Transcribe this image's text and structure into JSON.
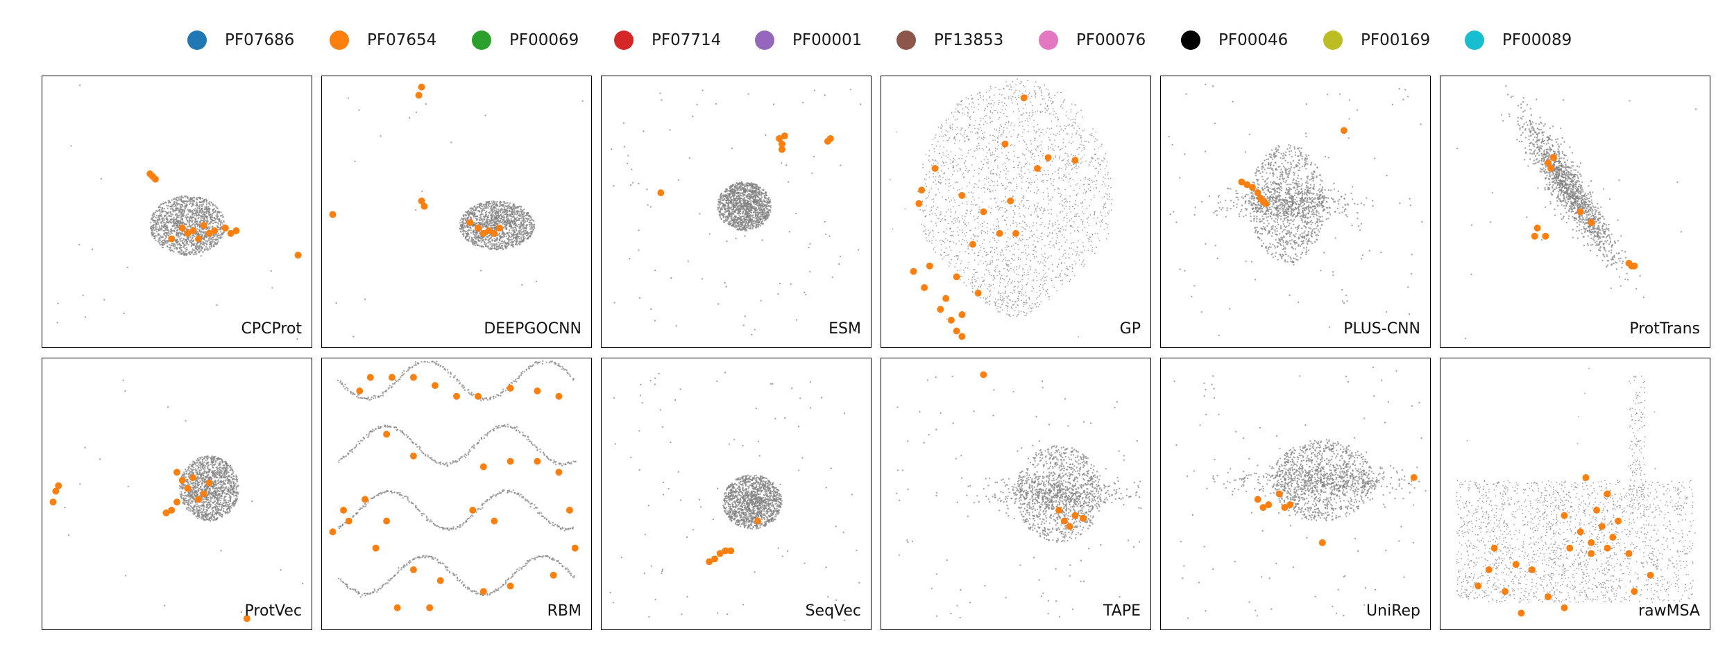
{
  "chart_data": {
    "type": "scatter",
    "legend": {
      "placement": "top-center",
      "entries": [
        {
          "name": "PF07686",
          "color": "#1f77b4"
        },
        {
          "name": "PF07654",
          "color": "#ff7f0e"
        },
        {
          "name": "PF00069",
          "color": "#2ca02c"
        },
        {
          "name": "PF07714",
          "color": "#d62728"
        },
        {
          "name": "PF00001",
          "color": "#9467bd"
        },
        {
          "name": "PF13853",
          "color": "#8c564b"
        },
        {
          "name": "PF00076",
          "color": "#e377c2"
        },
        {
          "name": "PF00046",
          "color": "#000000"
        },
        {
          "name": "PF00169",
          "color": "#bcbd22"
        },
        {
          "name": "PF00089",
          "color": "#17becf"
        }
      ]
    },
    "background_color": "#808080",
    "highlight_series": "PF07654",
    "grid": false,
    "axes_visible": false,
    "layout": "2 rows x 6 columns",
    "panels": [
      {
        "name": "CPCProt",
        "shape": "blob",
        "cloud_center": [
          0.54,
          0.55
        ],
        "cloud_radius": [
          0.14,
          0.11
        ],
        "highlight_points": [
          [
            0.4,
            0.36
          ],
          [
            0.41,
            0.37
          ],
          [
            0.42,
            0.38
          ],
          [
            0.54,
            0.58
          ],
          [
            0.56,
            0.57
          ],
          [
            0.58,
            0.6
          ],
          [
            0.6,
            0.55
          ],
          [
            0.62,
            0.58
          ],
          [
            0.64,
            0.57
          ],
          [
            0.68,
            0.56
          ],
          [
            0.7,
            0.58
          ],
          [
            0.72,
            0.57
          ],
          [
            0.52,
            0.56
          ],
          [
            0.48,
            0.6
          ],
          [
            0.95,
            0.66
          ]
        ]
      },
      {
        "name": "DEEPGOCNN",
        "shape": "blob",
        "cloud_center": [
          0.65,
          0.55
        ],
        "cloud_radius": [
          0.14,
          0.09
        ],
        "highlight_points": [
          [
            0.37,
            0.04
          ],
          [
            0.36,
            0.07
          ],
          [
            0.04,
            0.51
          ],
          [
            0.37,
            0.46
          ],
          [
            0.38,
            0.48
          ],
          [
            0.55,
            0.54
          ],
          [
            0.58,
            0.56
          ],
          [
            0.6,
            0.58
          ],
          [
            0.62,
            0.57
          ],
          [
            0.64,
            0.58
          ],
          [
            0.66,
            0.56
          ]
        ]
      },
      {
        "name": "ESM",
        "shape": "star",
        "cloud_center": [
          0.53,
          0.48
        ],
        "cloud_radius": [
          0.1,
          0.09
        ],
        "highlight_points": [
          [
            0.66,
            0.23
          ],
          [
            0.67,
            0.25
          ],
          [
            0.68,
            0.22
          ],
          [
            0.67,
            0.27
          ],
          [
            0.84,
            0.24
          ],
          [
            0.85,
            0.23
          ],
          [
            0.22,
            0.43
          ]
        ]
      },
      {
        "name": "GP",
        "shape": "fan",
        "cloud_center": [
          0.5,
          0.45
        ],
        "cloud_radius": [
          0.36,
          0.44
        ],
        "highlight_points": [
          [
            0.53,
            0.08
          ],
          [
            0.46,
            0.25
          ],
          [
            0.62,
            0.3
          ],
          [
            0.72,
            0.31
          ],
          [
            0.58,
            0.34
          ],
          [
            0.2,
            0.34
          ],
          [
            0.15,
            0.42
          ],
          [
            0.3,
            0.44
          ],
          [
            0.48,
            0.46
          ],
          [
            0.38,
            0.5
          ],
          [
            0.14,
            0.47
          ],
          [
            0.5,
            0.58
          ],
          [
            0.44,
            0.58
          ],
          [
            0.34,
            0.62
          ],
          [
            0.18,
            0.7
          ],
          [
            0.12,
            0.72
          ],
          [
            0.28,
            0.74
          ],
          [
            0.16,
            0.78
          ],
          [
            0.36,
            0.8
          ],
          [
            0.24,
            0.82
          ],
          [
            0.22,
            0.86
          ],
          [
            0.3,
            0.88
          ],
          [
            0.26,
            0.9
          ],
          [
            0.28,
            0.94
          ],
          [
            0.3,
            0.96
          ]
        ]
      },
      {
        "name": "PLUS-CNN",
        "shape": "cross",
        "cloud_center": [
          0.47,
          0.47
        ],
        "cloud_radius": [
          0.14,
          0.22
        ],
        "highlight_points": [
          [
            0.68,
            0.2
          ],
          [
            0.3,
            0.39
          ],
          [
            0.32,
            0.4
          ],
          [
            0.34,
            0.41
          ],
          [
            0.36,
            0.43
          ],
          [
            0.37,
            0.45
          ],
          [
            0.38,
            0.46
          ],
          [
            0.39,
            0.47
          ]
        ]
      },
      {
        "name": "ProtTrans",
        "shape": "diag",
        "cloud_center": [
          0.48,
          0.42
        ],
        "cloud_radius": [
          0.13,
          0.2
        ],
        "highlight_points": [
          [
            0.4,
            0.32
          ],
          [
            0.42,
            0.3
          ],
          [
            0.41,
            0.34
          ],
          [
            0.52,
            0.5
          ],
          [
            0.56,
            0.54
          ],
          [
            0.36,
            0.56
          ],
          [
            0.35,
            0.59
          ],
          [
            0.39,
            0.59
          ],
          [
            0.7,
            0.69
          ],
          [
            0.71,
            0.7
          ],
          [
            0.72,
            0.7
          ]
        ]
      },
      {
        "name": "ProtVec",
        "shape": "blob",
        "cloud_center": [
          0.62,
          0.48
        ],
        "cloud_radius": [
          0.11,
          0.12
        ],
        "highlight_points": [
          [
            0.06,
            0.47
          ],
          [
            0.05,
            0.49
          ],
          [
            0.04,
            0.53
          ],
          [
            0.5,
            0.42
          ],
          [
            0.52,
            0.45
          ],
          [
            0.54,
            0.48
          ],
          [
            0.56,
            0.44
          ],
          [
            0.58,
            0.52
          ],
          [
            0.6,
            0.5
          ],
          [
            0.62,
            0.46
          ],
          [
            0.5,
            0.53
          ],
          [
            0.46,
            0.57
          ],
          [
            0.48,
            0.56
          ],
          [
            0.76,
            0.96
          ]
        ]
      },
      {
        "name": "RBM",
        "shape": "string",
        "cloud_center": [
          0.5,
          0.5
        ],
        "cloud_radius": [
          0.45,
          0.45
        ],
        "highlight_points": [
          [
            0.18,
            0.07
          ],
          [
            0.26,
            0.07
          ],
          [
            0.34,
            0.07
          ],
          [
            0.42,
            0.1
          ],
          [
            0.5,
            0.14
          ],
          [
            0.58,
            0.14
          ],
          [
            0.7,
            0.11
          ],
          [
            0.8,
            0.12
          ],
          [
            0.88,
            0.14
          ],
          [
            0.14,
            0.12
          ],
          [
            0.24,
            0.28
          ],
          [
            0.34,
            0.36
          ],
          [
            0.16,
            0.52
          ],
          [
            0.24,
            0.6
          ],
          [
            0.08,
            0.56
          ],
          [
            0.04,
            0.64
          ],
          [
            0.1,
            0.6
          ],
          [
            0.2,
            0.7
          ],
          [
            0.34,
            0.78
          ],
          [
            0.44,
            0.82
          ],
          [
            0.4,
            0.92
          ],
          [
            0.28,
            0.92
          ],
          [
            0.6,
            0.4
          ],
          [
            0.7,
            0.38
          ],
          [
            0.8,
            0.38
          ],
          [
            0.88,
            0.42
          ],
          [
            0.92,
            0.56
          ],
          [
            0.94,
            0.7
          ],
          [
            0.86,
            0.8
          ],
          [
            0.7,
            0.84
          ],
          [
            0.6,
            0.86
          ],
          [
            0.56,
            0.56
          ],
          [
            0.64,
            0.6
          ]
        ]
      },
      {
        "name": "SeqVec",
        "shape": "star",
        "cloud_center": [
          0.56,
          0.53
        ],
        "cloud_radius": [
          0.11,
          0.1
        ],
        "highlight_points": [
          [
            0.4,
            0.75
          ],
          [
            0.42,
            0.74
          ],
          [
            0.44,
            0.72
          ],
          [
            0.46,
            0.71
          ],
          [
            0.48,
            0.71
          ],
          [
            0.58,
            0.6
          ]
        ]
      },
      {
        "name": "TAPE",
        "shape": "cross",
        "cloud_center": [
          0.66,
          0.5
        ],
        "cloud_radius": [
          0.16,
          0.18
        ],
        "highlight_points": [
          [
            0.38,
            0.06
          ],
          [
            0.66,
            0.56
          ],
          [
            0.68,
            0.6
          ],
          [
            0.72,
            0.58
          ],
          [
            0.75,
            0.59
          ],
          [
            0.7,
            0.62
          ]
        ]
      },
      {
        "name": "UniRep",
        "shape": "cross",
        "cloud_center": [
          0.6,
          0.45
        ],
        "cloud_radius": [
          0.19,
          0.15
        ],
        "highlight_points": [
          [
            0.36,
            0.52
          ],
          [
            0.38,
            0.55
          ],
          [
            0.4,
            0.54
          ],
          [
            0.44,
            0.5
          ],
          [
            0.46,
            0.55
          ],
          [
            0.48,
            0.54
          ],
          [
            0.6,
            0.68
          ],
          [
            0.94,
            0.44
          ]
        ]
      },
      {
        "name": "rawMSA",
        "shape": "wide",
        "cloud_center": [
          0.5,
          0.65
        ],
        "cloud_radius": [
          0.44,
          0.28
        ],
        "highlight_points": [
          [
            0.54,
            0.44
          ],
          [
            0.62,
            0.5
          ],
          [
            0.58,
            0.56
          ],
          [
            0.46,
            0.58
          ],
          [
            0.6,
            0.62
          ],
          [
            0.52,
            0.64
          ],
          [
            0.64,
            0.66
          ],
          [
            0.56,
            0.68
          ],
          [
            0.48,
            0.7
          ],
          [
            0.62,
            0.7
          ],
          [
            0.7,
            0.72
          ],
          [
            0.28,
            0.76
          ],
          [
            0.34,
            0.78
          ],
          [
            0.2,
            0.7
          ],
          [
            0.24,
            0.86
          ],
          [
            0.4,
            0.88
          ],
          [
            0.46,
            0.92
          ],
          [
            0.3,
            0.94
          ],
          [
            0.66,
            0.6
          ],
          [
            0.56,
            0.72
          ],
          [
            0.18,
            0.78
          ],
          [
            0.14,
            0.84
          ],
          [
            0.78,
            0.8
          ],
          [
            0.72,
            0.86
          ]
        ]
      }
    ]
  }
}
